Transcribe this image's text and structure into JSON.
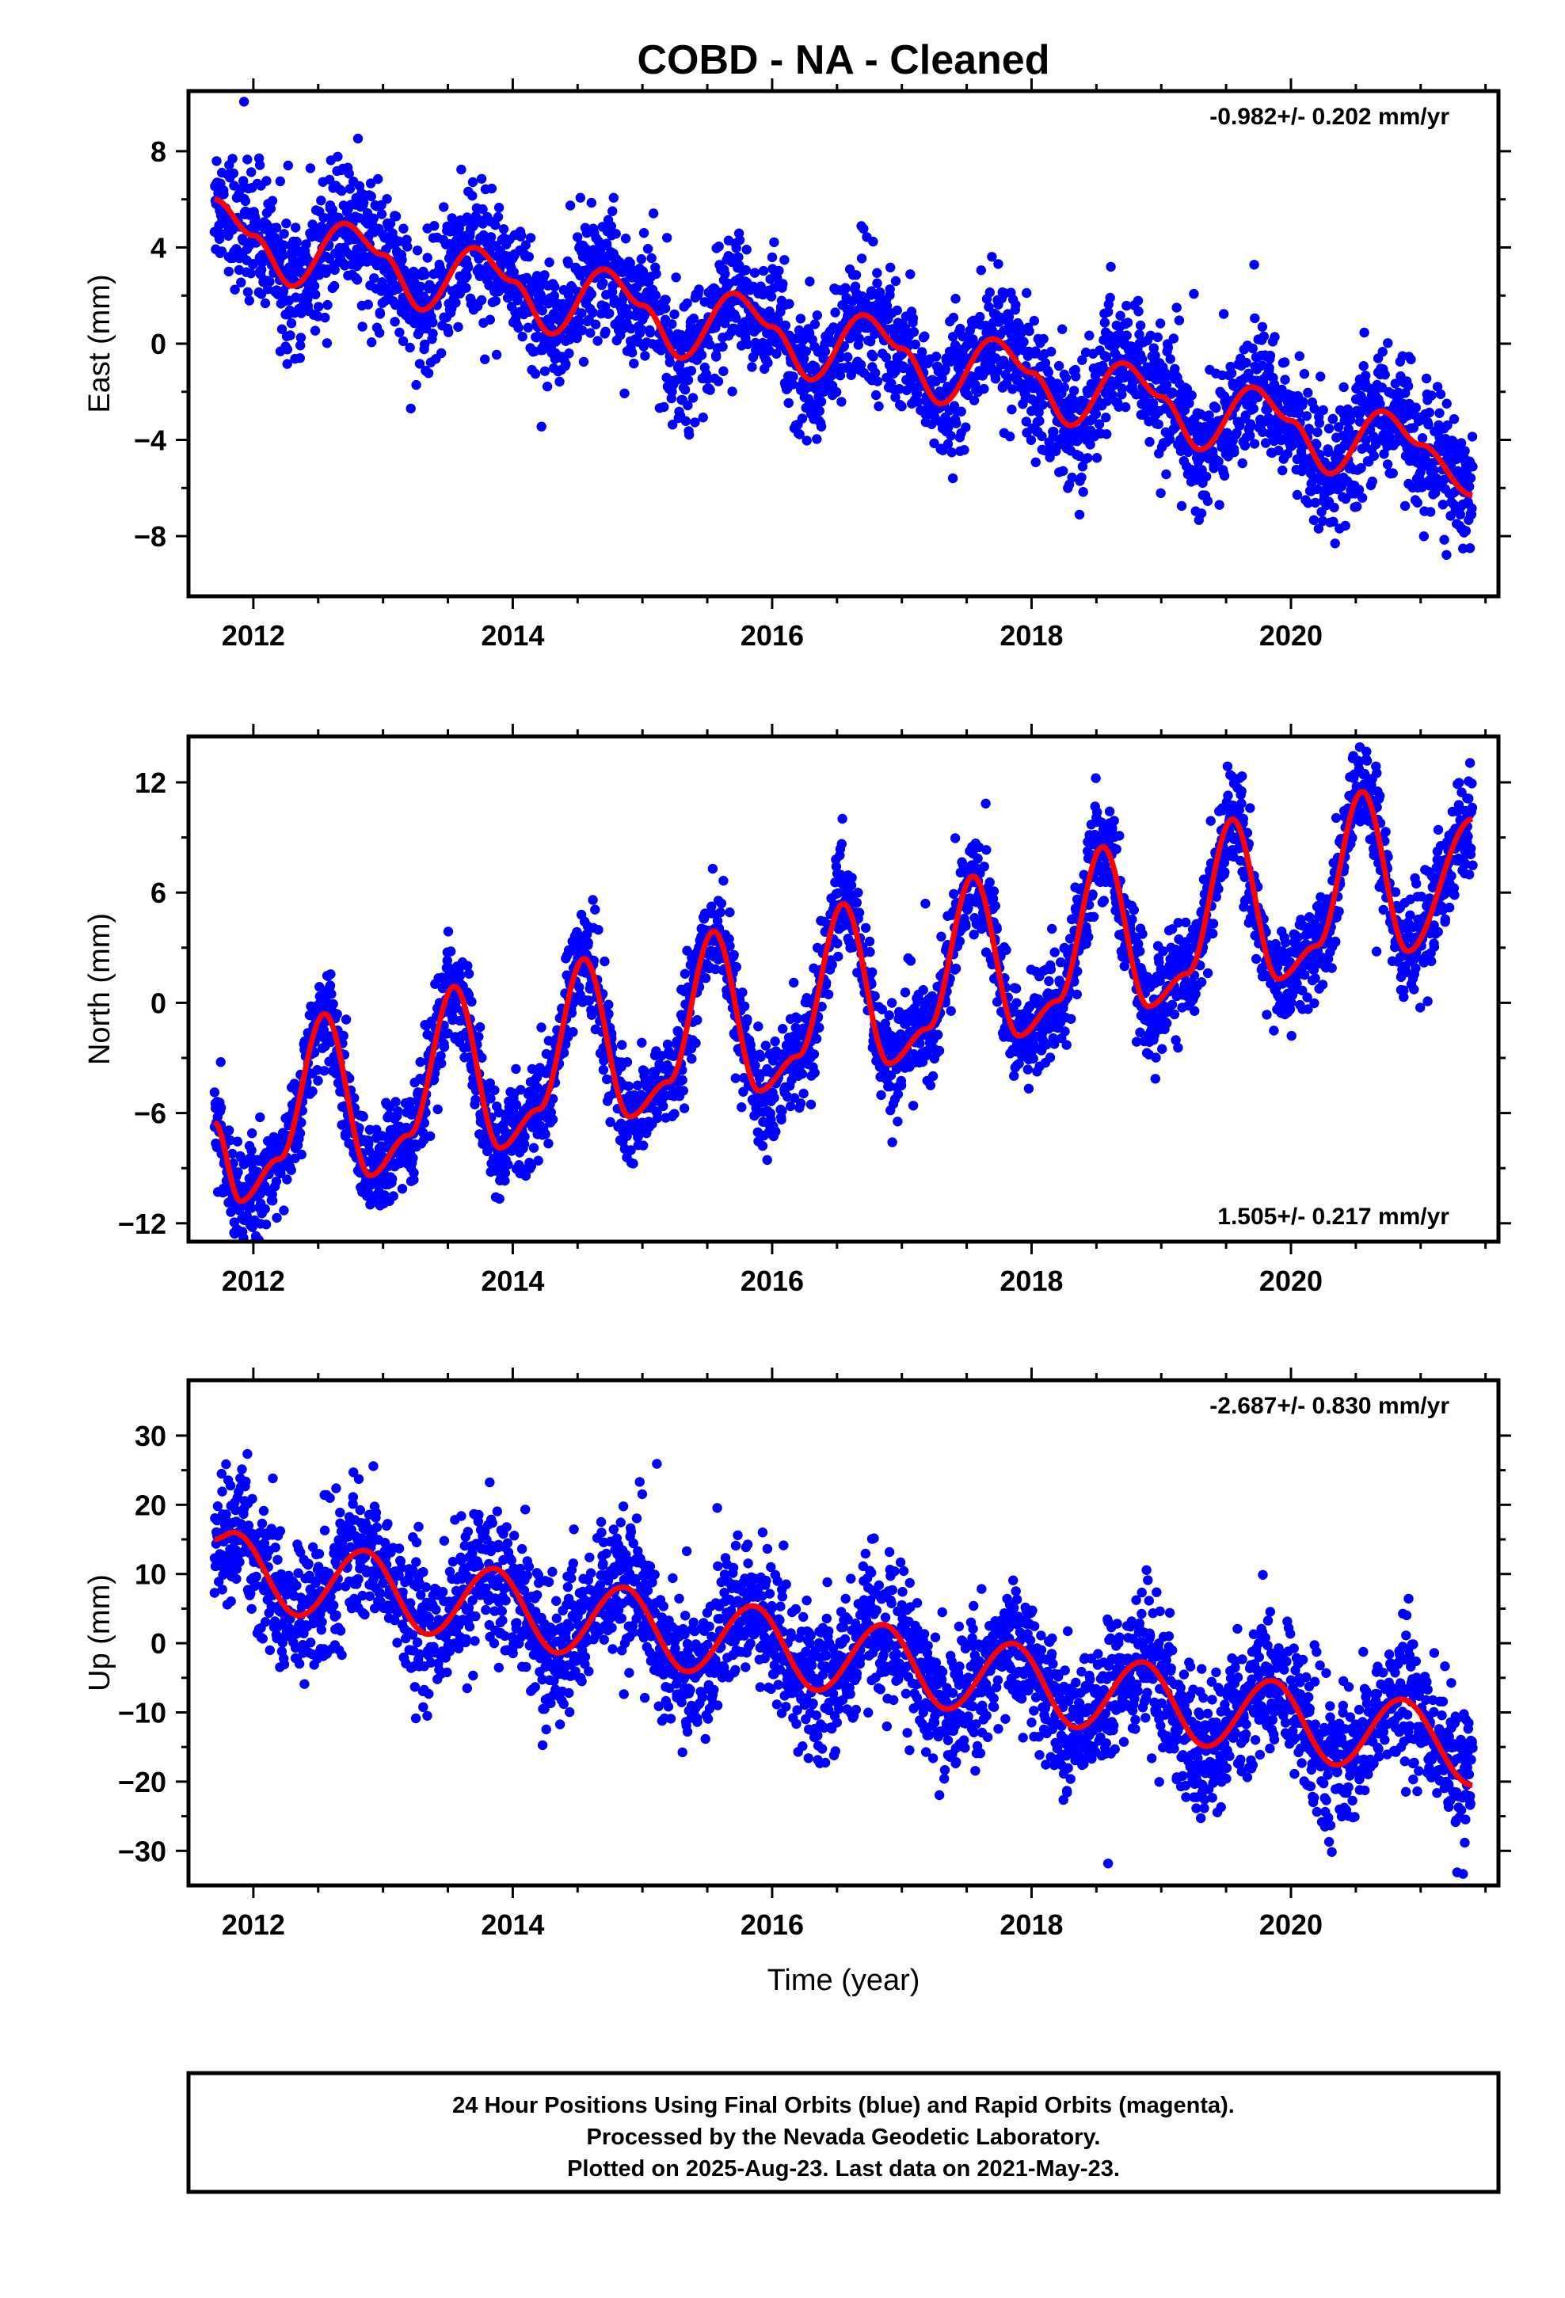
{
  "title": "COBD  - NA - Cleaned",
  "colors": {
    "points": "#0000ff",
    "fit": "#ff0000",
    "axis": "#000000"
  },
  "chart_data": [
    {
      "type": "scatter",
      "component": "east",
      "ylabel": "East (mm)",
      "rate": "-0.982+/- 0.202 mm/yr",
      "rate_position": "top-right",
      "xlim": [
        2011.5,
        2021.6
      ],
      "ylim": [
        -10.5,
        10.5
      ],
      "x_ticks": [
        2012,
        2014,
        2016,
        2018,
        2020
      ],
      "x_tick_labels": [
        "2012",
        "2014",
        "2016",
        "2018",
        "2020"
      ],
      "y_ticks": [
        -8,
        -4,
        0,
        4,
        8
      ],
      "y_tick_labels": [
        "−8",
        "−4",
        "0",
        "4",
        "8"
      ],
      "series": [
        {
          "style": "points",
          "x_range": [
            2011.7,
            2021.4
          ],
          "trend": {
            "start": 3.6,
            "rate": -0.982,
            "end": -5.9
          },
          "seasonal": {
            "annual_amplitude": 1.9,
            "semiannual_amplitude": 0.4,
            "peak_phase": 0.72
          },
          "scatter_sd": 1.3
        },
        {
          "style": "line",
          "x": [
            2011.7,
            2012.0,
            2012.3,
            2012.7,
            2013.0,
            2013.3,
            2013.7,
            2014.0,
            2014.3,
            2014.7,
            2015.0,
            2015.3,
            2015.7,
            2016.0,
            2016.3,
            2016.7,
            2017.0,
            2017.3,
            2017.7,
            2018.0,
            2018.3,
            2018.7,
            2019.0,
            2019.3,
            2019.7,
            2020.0,
            2020.3,
            2020.7,
            2021.0,
            2021.4
          ],
          "y": [
            6.0,
            4.5,
            2.4,
            5.0,
            3.7,
            1.4,
            4.0,
            2.6,
            0.4,
            3.1,
            1.6,
            -0.6,
            2.1,
            0.7,
            -1.5,
            1.2,
            -0.2,
            -2.5,
            0.2,
            -1.2,
            -3.4,
            -0.8,
            -2.2,
            -4.4,
            -1.8,
            -3.2,
            -5.4,
            -2.8,
            -4.2,
            -6.3
          ]
        }
      ]
    },
    {
      "type": "scatter",
      "component": "north",
      "ylabel": "North (mm)",
      "rate": "1.505+/- 0.217 mm/yr",
      "rate_position": "bottom-right",
      "xlim": [
        2011.5,
        2021.6
      ],
      "ylim": [
        -13,
        14.5
      ],
      "x_ticks": [
        2012,
        2014,
        2016,
        2018,
        2020
      ],
      "x_tick_labels": [
        "2012",
        "2014",
        "2016",
        "2018",
        "2020"
      ],
      "y_ticks": [
        -12,
        -6,
        0,
        6,
        12
      ],
      "y_tick_labels": [
        "−12",
        "−6",
        "0",
        "6",
        "12"
      ],
      "series": [
        {
          "style": "points",
          "x_range": [
            2011.7,
            2021.4
          ],
          "trend": {
            "start": -7.5,
            "rate": 1.505,
            "end": 7.0
          },
          "seasonal": {
            "annual_amplitude": 4.5,
            "peak_phase": 0.52,
            "shape": "sharp-peak"
          },
          "scatter_sd": 1.4
        },
        {
          "style": "line",
          "x": [
            2011.7,
            2011.9,
            2012.2,
            2012.55,
            2012.9,
            2013.2,
            2013.55,
            2013.9,
            2014.2,
            2014.55,
            2014.9,
            2015.2,
            2015.55,
            2015.9,
            2016.2,
            2016.55,
            2016.9,
            2017.2,
            2017.55,
            2017.9,
            2018.2,
            2018.55,
            2018.9,
            2019.2,
            2019.55,
            2019.9,
            2020.2,
            2020.55,
            2020.9,
            2021.4
          ],
          "y": [
            -6.5,
            -10.8,
            -8.5,
            -0.6,
            -9.4,
            -7.2,
            0.9,
            -7.9,
            -5.8,
            2.4,
            -6.2,
            -4.3,
            3.9,
            -4.8,
            -2.9,
            5.4,
            -3.3,
            -1.4,
            6.9,
            -1.8,
            0.1,
            8.5,
            -0.2,
            1.6,
            10.0,
            1.3,
            3.1,
            11.5,
            2.8,
            10.0
          ]
        }
      ]
    },
    {
      "type": "scatter",
      "component": "up",
      "ylabel": "Up (mm)",
      "xlabel": "Time (year)",
      "rate": "-2.687+/- 0.830 mm/yr",
      "rate_position": "top-right",
      "xlim": [
        2011.5,
        2021.6
      ],
      "ylim": [
        -35,
        38
      ],
      "x_ticks": [
        2012,
        2014,
        2016,
        2018,
        2020
      ],
      "x_tick_labels": [
        "2012",
        "2014",
        "2016",
        "2018",
        "2020"
      ],
      "y_ticks": [
        -30,
        -20,
        -10,
        0,
        10,
        20,
        30
      ],
      "y_tick_labels": [
        "−30",
        "−20",
        "−10",
        "0",
        "10",
        "20",
        "30"
      ],
      "series": [
        {
          "style": "points",
          "x_range": [
            2011.7,
            2021.4
          ],
          "trend": {
            "start": 10.0,
            "rate": -2.687,
            "end": -16.0
          },
          "seasonal": {
            "annual_amplitude": 6.0,
            "peak_phase": 0.85
          },
          "scatter_sd": 5.0
        },
        {
          "style": "line",
          "x": [
            2011.7,
            2011.85,
            2012.35,
            2012.85,
            2013.35,
            2013.85,
            2014.35,
            2014.85,
            2015.35,
            2015.85,
            2016.35,
            2016.85,
            2017.35,
            2017.85,
            2018.35,
            2018.85,
            2019.35,
            2019.85,
            2020.35,
            2020.85,
            2021.4
          ],
          "y": [
            15.0,
            16.0,
            4.0,
            13.4,
            1.3,
            10.8,
            -1.4,
            8.1,
            -4.1,
            5.4,
            -6.8,
            2.7,
            -9.5,
            0.0,
            -12.2,
            -2.7,
            -14.9,
            -5.4,
            -17.6,
            -8.1,
            -20.5
          ]
        }
      ]
    }
  ],
  "footer": {
    "lines": [
      "24 Hour Positions Using Final Orbits (blue) and Rapid Orbits (magenta).",
      "Processed by the Nevada Geodetic Laboratory.",
      "Plotted on 2025-Aug-23. Last data on 2021-May-23."
    ]
  }
}
